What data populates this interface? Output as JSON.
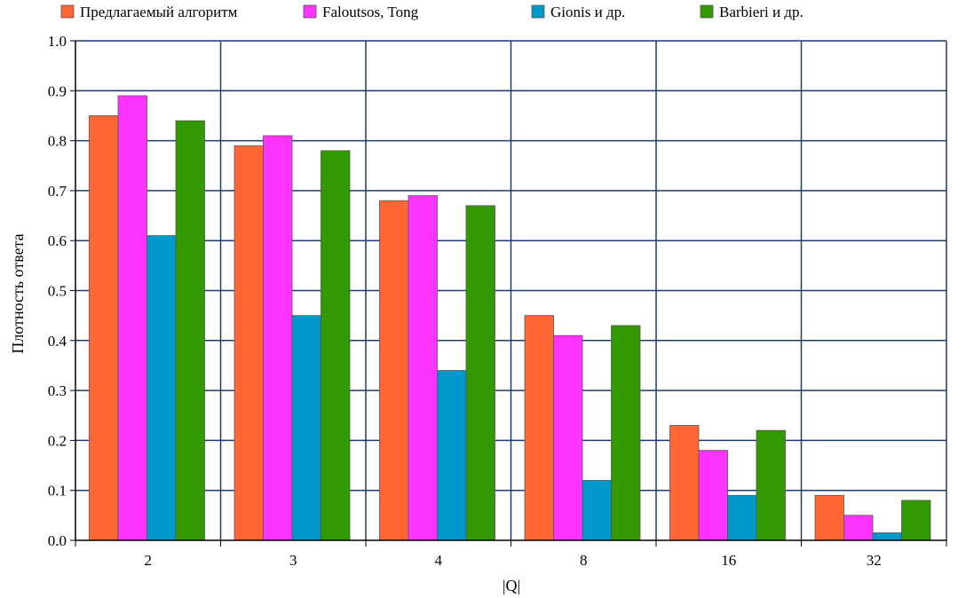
{
  "chart_data": {
    "type": "bar",
    "title": "",
    "xlabel": "|Q|",
    "ylabel": "Плотность ответа",
    "categories": [
      "2",
      "3",
      "4",
      "8",
      "16",
      "32"
    ],
    "ylim": [
      0.0,
      1.0
    ],
    "yticks": [
      "0.0",
      "0.1",
      "0.2",
      "0.3",
      "0.4",
      "0.5",
      "0.6",
      "0.7",
      "0.8",
      "0.9",
      "1.0"
    ],
    "grid": true,
    "legend_position": "top",
    "series": [
      {
        "name": "Предлагаемый алгоритм",
        "color": "#ff6633",
        "values": [
          0.85,
          0.79,
          0.68,
          0.45,
          0.23,
          0.09
        ]
      },
      {
        "name": "Faloutsos, Tong",
        "color": "#ff33ff",
        "values": [
          0.89,
          0.81,
          0.69,
          0.41,
          0.18,
          0.05
        ]
      },
      {
        "name": "Gionis и др.",
        "color": "#0099cc",
        "values": [
          0.61,
          0.45,
          0.34,
          0.12,
          0.09,
          0.015
        ]
      },
      {
        "name": "Barbieri и др.",
        "color": "#339900",
        "values": [
          0.84,
          0.78,
          0.67,
          0.43,
          0.22,
          0.08
        ]
      }
    ]
  }
}
